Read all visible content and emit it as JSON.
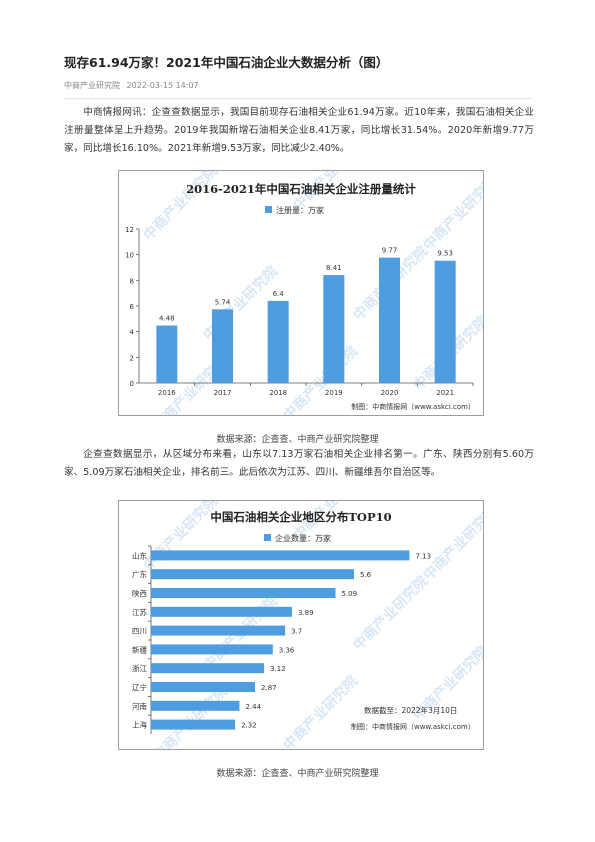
{
  "article": {
    "title": "现存61.94万家！2021年中国石油企业大数据分析（图）",
    "source": "中商产业研究院",
    "date": "2022-03-15 14:07",
    "para1": "中商情报网讯：企查查数据显示，我国目前现存石油相关企业61.94万家。近10年来，我国石油相关企业注册量整体呈上升趋势。2019年我国新增石油相关企业8.41万家，同比增长31.54%。2020年新增9.77万家，同比增长16.10%。2021年新增9.53万家，同比减少2.40%。",
    "caption1": "数据来源：企查查、中商产业研究院整理",
    "para2": "企查查数据显示，从区域分布来看，山东以7.13万家石油相关企业排名第一。广东、陕西分别有5.60万家、5.09万家石油相关企业，排名前三。此后依次为江苏、四川、新疆维吾尔自治区等。",
    "caption2": "数据来源：企查查、中商产业研究院整理"
  },
  "watermark_text": "中商产业研究院",
  "colors": {
    "bar": "#4d9de0",
    "axis": "#595959",
    "watermark": "#b9d4ee",
    "border": "#9c9c9c"
  },
  "chart_data": [
    {
      "type": "bar",
      "title": "2016-2021年中国石油相关企业注册量统计",
      "legend": "注册量：万家",
      "categories": [
        "2016",
        "2017",
        "2018",
        "2019",
        "2020",
        "2021"
      ],
      "values": [
        4.48,
        5.74,
        6.4,
        8.41,
        9.77,
        9.53
      ],
      "value_labels": [
        "4.48",
        "5.74",
        "6.4",
        "8.41",
        "9.77",
        "9.53"
      ],
      "ylim": [
        0,
        12
      ],
      "yticks": [
        "0",
        "2",
        "4",
        "6",
        "8",
        "10",
        "12"
      ],
      "grid": false,
      "legend_position": "top-left",
      "credit": "制图：中商情报网（www.askci.com）"
    },
    {
      "type": "bar",
      "orientation": "horizontal",
      "title": "中国石油相关企业地区分布TOP10",
      "legend": "企业数量：万家",
      "categories": [
        "山东",
        "广东",
        "陕西",
        "江苏",
        "四川",
        "新疆",
        "浙江",
        "辽宁",
        "河南",
        "上海"
      ],
      "values": [
        7.13,
        5.6,
        5.09,
        3.89,
        3.7,
        3.36,
        3.12,
        2.87,
        2.44,
        2.32
      ],
      "value_labels": [
        "7.13",
        "5.6",
        "5.09",
        "3.89",
        "3.7",
        "3.36",
        "3.12",
        "2.87",
        "2.44",
        "2.32"
      ],
      "xlim": [
        0,
        8
      ],
      "grid": false,
      "legend_position": "top-center",
      "note": "数据截至：2022年3月10日",
      "credit": "制图：中商情报网（www.askci.com）"
    }
  ]
}
